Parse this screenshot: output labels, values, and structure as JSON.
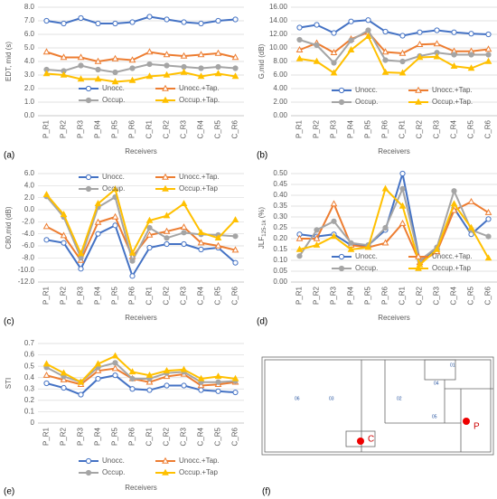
{
  "chart_data": [
    {
      "type": "line",
      "panel_label": "(a)",
      "y_label": "EDT, mid (s)",
      "x_label": "Receivers",
      "legend": "inside-bottom",
      "grid": true,
      "categories": [
        "P_R1",
        "P_R2",
        "P_R3",
        "P_R4",
        "P_R5",
        "P_R6",
        "C_R1",
        "C_R2",
        "C_R3",
        "C_R4",
        "C_R5",
        "C_R6"
      ],
      "ylim": [
        0,
        8
      ],
      "yticks": [
        {
          "value": 0,
          "label": "0.0"
        },
        {
          "value": 1,
          "label": "1.0"
        },
        {
          "value": 2,
          "label": "2.0"
        },
        {
          "value": 3,
          "label": "3.0"
        },
        {
          "value": 4,
          "label": "4.0"
        },
        {
          "value": 5,
          "label": "5.0"
        },
        {
          "value": 6,
          "label": "6.0"
        },
        {
          "value": 7,
          "label": "7.0"
        },
        {
          "value": 8,
          "label": "8.0"
        }
      ],
      "series": [
        {
          "name": "Unocc.",
          "color": "#4472c4",
          "marker": "circle-open",
          "values": [
            7.0,
            6.8,
            7.2,
            6.8,
            6.8,
            6.9,
            7.3,
            7.1,
            6.9,
            6.8,
            7.0,
            7.1
          ]
        },
        {
          "name": "Unocc.+Tap.",
          "color": "#ed7d31",
          "marker": "triangle-open",
          "values": [
            4.7,
            4.3,
            4.3,
            4.0,
            4.2,
            4.1,
            4.7,
            4.5,
            4.4,
            4.5,
            4.6,
            4.3
          ]
        },
        {
          "name": "Occup.",
          "color": "#a5a5a5",
          "marker": "circle",
          "values": [
            3.4,
            3.3,
            3.7,
            3.4,
            3.2,
            3.5,
            3.8,
            3.7,
            3.6,
            3.5,
            3.6,
            3.5
          ]
        },
        {
          "name": "Occup.+Tap.",
          "color": "#ffc000",
          "marker": "triangle",
          "values": [
            3.1,
            3.0,
            2.7,
            2.7,
            2.5,
            2.6,
            2.9,
            3.0,
            3.2,
            2.9,
            3.1,
            2.9
          ]
        }
      ]
    },
    {
      "type": "line",
      "panel_label": "(b)",
      "y_label": "G,mid (dB)",
      "x_label": "Receivers",
      "legend": "inside-bottom",
      "grid": true,
      "categories": [
        "P_R1",
        "P_R2",
        "P_R3",
        "P_R4",
        "P_R5",
        "P_R6",
        "C_R1",
        "C_R2",
        "C_R3",
        "C_R4",
        "C_R5",
        "C_R6"
      ],
      "ylim": [
        0,
        16
      ],
      "yticks": [
        {
          "value": 0,
          "label": "0.00"
        },
        {
          "value": 2,
          "label": "2.00"
        },
        {
          "value": 4,
          "label": "4.00"
        },
        {
          "value": 6,
          "label": "6.00"
        },
        {
          "value": 8,
          "label": "8.00"
        },
        {
          "value": 10,
          "label": "10.00"
        },
        {
          "value": 12,
          "label": "12.00"
        },
        {
          "value": 14,
          "label": "14.00"
        },
        {
          "value": 16,
          "label": "16.00"
        }
      ],
      "series": [
        {
          "name": "Unocc.",
          "color": "#4472c4",
          "marker": "circle-open",
          "values": [
            13.0,
            13.4,
            12.2,
            13.9,
            14.1,
            12.4,
            11.8,
            12.3,
            12.6,
            12.3,
            12.1,
            12.0
          ]
        },
        {
          "name": "Unocc.+Tap.",
          "color": "#ed7d31",
          "marker": "triangle-open",
          "values": [
            9.7,
            10.7,
            9.3,
            11.3,
            12.3,
            9.4,
            9.2,
            10.5,
            10.6,
            9.5,
            9.5,
            9.8
          ]
        },
        {
          "name": "Occup.",
          "color": "#a5a5a5",
          "marker": "circle",
          "values": [
            11.2,
            10.4,
            7.8,
            11.1,
            12.6,
            8.2,
            8.0,
            8.8,
            9.3,
            9.0,
            9.0,
            9.0
          ]
        },
        {
          "name": "Occup.+Tap.",
          "color": "#ffc000",
          "marker": "triangle",
          "values": [
            8.4,
            8.0,
            6.3,
            9.7,
            11.7,
            6.4,
            6.3,
            8.6,
            8.7,
            7.3,
            7.0,
            8.0
          ]
        }
      ]
    },
    {
      "type": "line",
      "panel_label": "(c)",
      "y_label": "C80,mid (dB)",
      "x_label": "Receivers",
      "legend": "inside-top",
      "grid": true,
      "categories": [
        "P_R1",
        "P_R2",
        "P_R3",
        "P_R4",
        "P_R5",
        "P_R6",
        "C_R1",
        "C_R2",
        "C_R3",
        "C_R4",
        "C_R5",
        "C_R6"
      ],
      "ylim": [
        -12,
        6
      ],
      "yticks": [
        {
          "value": -12,
          "label": "-12.0"
        },
        {
          "value": -10,
          "label": "-10.0"
        },
        {
          "value": -8,
          "label": "-8.0"
        },
        {
          "value": -6,
          "label": "-6.0"
        },
        {
          "value": -4,
          "label": "-4.0"
        },
        {
          "value": -2,
          "label": "-2.0"
        },
        {
          "value": 0,
          "label": "0.0"
        },
        {
          "value": 2,
          "label": "2.0"
        },
        {
          "value": 4,
          "label": "4.0"
        },
        {
          "value": 6,
          "label": "6.0"
        }
      ],
      "series": [
        {
          "name": "Unocc.",
          "color": "#4472c4",
          "marker": "circle-open",
          "values": [
            -5.0,
            -5.5,
            -9.8,
            -4.0,
            -2.6,
            -11.0,
            -6.3,
            -5.7,
            -5.7,
            -6.6,
            -6.3,
            -8.8
          ]
        },
        {
          "name": "Unocc.+Tap.",
          "color": "#ed7d31",
          "marker": "triangle-open",
          "values": [
            -2.8,
            -4.3,
            -8.4,
            -2.1,
            -1.2,
            -7.8,
            -4.2,
            -3.6,
            -2.9,
            -5.5,
            -6.0,
            -6.7
          ]
        },
        {
          "name": "Occup.",
          "color": "#a5a5a5",
          "marker": "circle",
          "values": [
            2.2,
            -1.2,
            -8.0,
            0.4,
            2.1,
            -8.5,
            -3.0,
            -4.7,
            -3.8,
            -4.1,
            -4.2,
            -4.4
          ]
        },
        {
          "name": "Occup.+Tap",
          "color": "#ffc000",
          "marker": "triangle",
          "values": [
            2.5,
            -0.8,
            -7.3,
            1.0,
            3.4,
            -7.2,
            -1.8,
            -1.0,
            1.0,
            -3.8,
            -4.7,
            -1.7
          ]
        }
      ]
    },
    {
      "type": "line",
      "panel_label": "(d)",
      "y_label": "JLF",
      "y_label_sub": "125-1k",
      "y_label_unit": "(%)",
      "x_label": "Receivers",
      "legend": "inside-bottom",
      "grid": true,
      "categories": [
        "P_R1",
        "P_R2",
        "P_R3",
        "P_R4",
        "P_R5",
        "P_R6",
        "C_R1",
        "C_R2",
        "C_R3",
        "C_R4",
        "C_R5",
        "C_R6"
      ],
      "ylim": [
        0,
        0.5
      ],
      "yticks": [
        {
          "value": 0,
          "label": "0.00"
        },
        {
          "value": 0.05,
          "label": "0.05"
        },
        {
          "value": 0.1,
          "label": "0.10"
        },
        {
          "value": 0.15,
          "label": "0.15"
        },
        {
          "value": 0.2,
          "label": "0.20"
        },
        {
          "value": 0.25,
          "label": "0.25"
        },
        {
          "value": 0.3,
          "label": "0.30"
        },
        {
          "value": 0.35,
          "label": "0.35"
        },
        {
          "value": 0.4,
          "label": "0.40"
        },
        {
          "value": 0.45,
          "label": "0.45"
        },
        {
          "value": 0.5,
          "label": "0.50"
        }
      ],
      "series": [
        {
          "name": "Unocc.",
          "color": "#4472c4",
          "marker": "circle-open",
          "values": [
            0.22,
            0.21,
            0.22,
            0.17,
            0.17,
            0.24,
            0.5,
            0.1,
            0.15,
            0.34,
            0.22,
            0.29
          ]
        },
        {
          "name": "Unocc.+Tap.",
          "color": "#ed7d31",
          "marker": "triangle-open",
          "values": [
            0.2,
            0.2,
            0.36,
            0.17,
            0.16,
            0.18,
            0.27,
            0.09,
            0.14,
            0.33,
            0.37,
            0.32
          ]
        },
        {
          "name": "Occup.",
          "color": "#a5a5a5",
          "marker": "circle",
          "values": [
            0.12,
            0.24,
            0.28,
            0.18,
            0.17,
            0.25,
            0.43,
            0.1,
            0.16,
            0.42,
            0.24,
            0.21
          ]
        },
        {
          "name": "Occup.+Tap",
          "color": "#ffc000",
          "marker": "triangle",
          "values": [
            0.15,
            0.17,
            0.21,
            0.15,
            0.16,
            0.43,
            0.35,
            0.08,
            0.15,
            0.36,
            0.25,
            0.11
          ]
        }
      ]
    },
    {
      "type": "line",
      "panel_label": "(e)",
      "y_label": "STI",
      "x_label": "Receivers",
      "legend": "below",
      "grid": true,
      "categories": [
        "P_R1",
        "P_R2",
        "P_R3",
        "P_R4",
        "P_R5",
        "P_R6",
        "C_R1",
        "C_R2",
        "C_R3",
        "C_R4",
        "C_R5",
        "C_R6"
      ],
      "ylim": [
        0,
        0.7
      ],
      "yticks": [
        0,
        0.1,
        0.2,
        0.3,
        0.4,
        0.5,
        0.6,
        0.7
      ],
      "series": [
        {
          "name": "Unocc.",
          "color": "#4472c4",
          "marker": "circle-open",
          "values": [
            0.35,
            0.31,
            0.25,
            0.39,
            0.42,
            0.3,
            0.29,
            0.33,
            0.33,
            0.29,
            0.28,
            0.27
          ]
        },
        {
          "name": "Unocc.+Tap.",
          "color": "#ed7d31",
          "marker": "triangle-open",
          "values": [
            0.42,
            0.38,
            0.34,
            0.46,
            0.48,
            0.39,
            0.36,
            0.41,
            0.43,
            0.33,
            0.34,
            0.36
          ]
        },
        {
          "name": "Occup.",
          "color": "#a5a5a5",
          "marker": "circle",
          "values": [
            0.49,
            0.41,
            0.36,
            0.49,
            0.53,
            0.39,
            0.39,
            0.44,
            0.45,
            0.36,
            0.36,
            0.37
          ]
        },
        {
          "name": "Occup.+Tap",
          "color": "#ffc000",
          "marker": "triangle",
          "values": [
            0.52,
            0.44,
            0.36,
            0.52,
            0.59,
            0.45,
            0.42,
            0.46,
            0.47,
            0.39,
            0.41,
            0.39
          ]
        }
      ]
    }
  ],
  "floor_plan": {
    "panel_label": "(f)",
    "receivers": [
      "01",
      "02",
      "03",
      "04",
      "05",
      "06"
    ],
    "sources": [
      "C",
      "P"
    ]
  }
}
